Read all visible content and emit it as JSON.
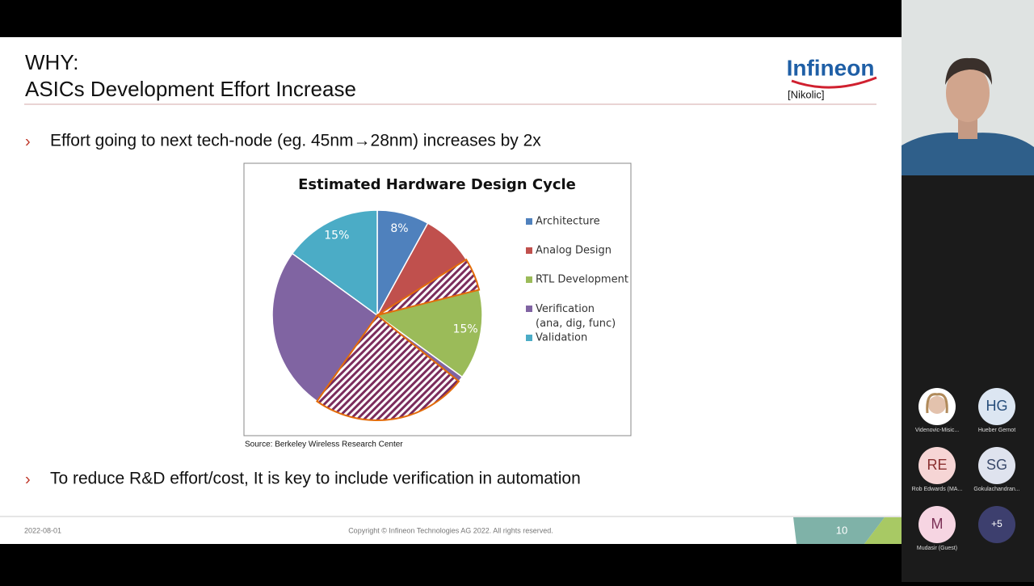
{
  "slide": {
    "title_line1": "WHY:",
    "title_line2": "ASICs Development Effort Increase",
    "logo": "Infineon",
    "author": "[Nikolic]",
    "bullets": [
      "Effort going to next tech-node (eg. 45nm→28nm) increases by 2x",
      "To reduce R&D effort/cost, It is key to include verification in automation"
    ],
    "source": "Source: Berkeley Wireless Research Center",
    "footer_date": "2022-08-01",
    "copyright": "Copyright © Infineon Technologies AG 2022. All rights reserved.",
    "page_number": "10"
  },
  "chart_data": {
    "type": "pie",
    "title": "Estimated Hardware Design Cycle",
    "categories": [
      "Architecture",
      "Analog Design",
      "RTL Development",
      "Verification (ana, dig, func)",
      "Validation"
    ],
    "values": [
      8,
      12,
      15,
      50,
      15
    ],
    "value_labels": [
      "8%",
      null,
      "15%",
      null,
      "15%"
    ],
    "colors": [
      "#4f81bd",
      "#c0504d",
      "#9bbb59",
      "#8064a2",
      "#4bacc6"
    ]
  },
  "meeting": {
    "participants": [
      {
        "name": "Videnovic-Misic..."
      },
      {
        "initials": "HG",
        "name": "Hueber Gernot"
      },
      {
        "initials": "RE",
        "name": "Rob Edwards (MA..."
      },
      {
        "initials": "SG",
        "name": "Gokulachandran..."
      },
      {
        "initials": "M",
        "name": "Mudasir (Guest)"
      },
      {
        "initials": "+5"
      }
    ]
  }
}
